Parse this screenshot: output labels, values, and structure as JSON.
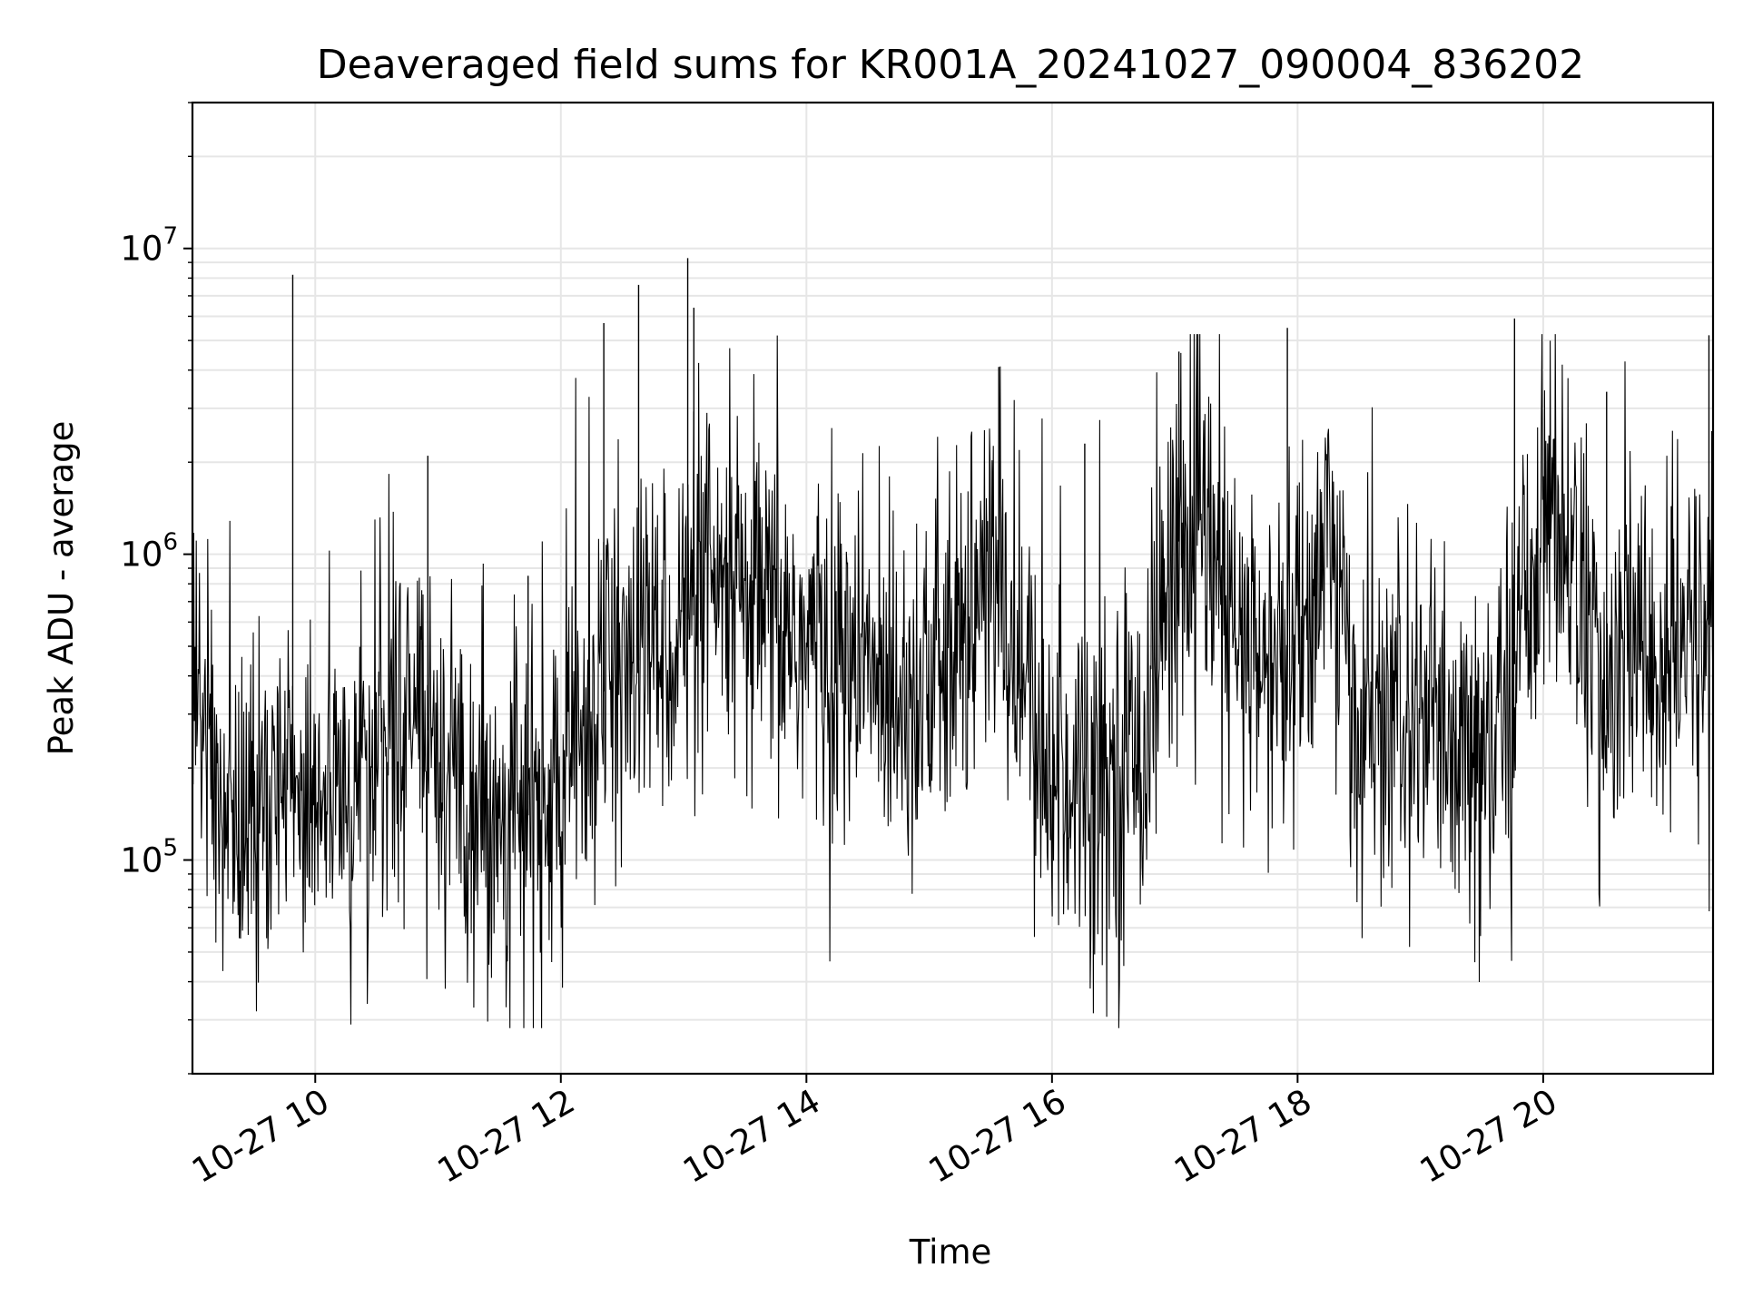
{
  "chart_data": {
    "type": "line",
    "title": "Deaveraged field sums for KR001A_20241027_090004_836202",
    "xlabel": "Time",
    "ylabel": "Peak ADU - average",
    "xlim": [
      "2024-10-27 09:00",
      "2024-10-27 21:23"
    ],
    "ylim": [
      20000,
      30000000
    ],
    "yscale": "log",
    "grid": true,
    "line_color": "#000000",
    "x_ticks": [
      {
        "time": "2024-10-27 10:00",
        "label": "10-27 10"
      },
      {
        "time": "2024-10-27 12:00",
        "label": "10-27 12"
      },
      {
        "time": "2024-10-27 14:00",
        "label": "10-27 14"
      },
      {
        "time": "2024-10-27 16:00",
        "label": "10-27 16"
      },
      {
        "time": "2024-10-27 18:00",
        "label": "10-27 18"
      },
      {
        "time": "2024-10-27 20:00",
        "label": "10-27 20"
      }
    ],
    "y_ticks": [
      {
        "value": 100000,
        "base": "10",
        "exp": "5"
      },
      {
        "value": 1000000,
        "base": "10",
        "exp": "6"
      },
      {
        "value": 10000000,
        "base": "10",
        "exp": "7"
      }
    ],
    "series": [
      {
        "x": [
          "2024-10-27 09:00",
          "2024-10-27 09:15",
          "2024-10-27 09:30",
          "2024-10-27 09:45",
          "2024-10-27 10:00",
          "2024-10-27 10:15",
          "2024-10-27 10:30",
          "2024-10-27 10:45",
          "2024-10-27 11:00",
          "2024-10-27 11:15",
          "2024-10-27 11:30",
          "2024-10-27 11:45",
          "2024-10-27 12:00",
          "2024-10-27 12:15",
          "2024-10-27 12:30",
          "2024-10-27 12:45",
          "2024-10-27 13:00",
          "2024-10-27 13:15",
          "2024-10-27 13:30",
          "2024-10-27 13:45",
          "2024-10-27 14:00",
          "2024-10-27 14:15",
          "2024-10-27 14:30",
          "2024-10-27 14:45",
          "2024-10-27 15:00",
          "2024-10-27 15:15",
          "2024-10-27 15:30",
          "2024-10-27 15:45",
          "2024-10-27 16:00",
          "2024-10-27 16:15",
          "2024-10-27 16:30",
          "2024-10-27 16:45",
          "2024-10-27 17:00",
          "2024-10-27 17:15",
          "2024-10-27 17:30",
          "2024-10-27 17:45",
          "2024-10-27 18:00",
          "2024-10-27 18:15",
          "2024-10-27 18:30",
          "2024-10-27 18:45",
          "2024-10-27 19:00",
          "2024-10-27 19:15",
          "2024-10-27 19:30",
          "2024-10-27 19:45",
          "2024-10-27 20:00",
          "2024-10-27 20:15",
          "2024-10-27 20:30",
          "2024-10-27 20:45",
          "2024-10-27 21:00",
          "2024-10-27 21:15",
          "2024-10-27 21:23"
        ],
        "y": [
          400000,
          150000,
          140000,
          160000,
          180000,
          150000,
          240000,
          300000,
          250000,
          170000,
          140000,
          140000,
          160000,
          330000,
          400000,
          500000,
          600000,
          700000,
          650000,
          600000,
          500000,
          450000,
          400000,
          400000,
          380000,
          450000,
          900000,
          400000,
          170000,
          200000,
          190000,
          250000,
          1100000,
          1100000,
          500000,
          400000,
          500000,
          1200000,
          250000,
          260000,
          300000,
          200000,
          180000,
          400000,
          1500000,
          1000000,
          300000,
          500000,
          400000,
          550000,
          600000
        ],
        "spikes": [
          {
            "time": "2024-10-27 09:49",
            "value": 8200000
          },
          {
            "time": "2024-10-27 10:55",
            "value": 2100000
          },
          {
            "time": "2024-10-27 11:44",
            "value": 850000
          },
          {
            "time": "2024-10-27 12:21",
            "value": 5700000
          },
          {
            "time": "2024-10-27 12:38",
            "value": 7600000
          },
          {
            "time": "2024-10-27 13:02",
            "value": 9300000
          },
          {
            "time": "2024-10-27 13:05",
            "value": 6400000
          },
          {
            "time": "2024-10-27 15:34",
            "value": 4100000
          },
          {
            "time": "2024-10-27 16:16",
            "value": 2300000
          },
          {
            "time": "2024-10-27 17:02",
            "value": 4600000
          },
          {
            "time": "2024-10-27 17:55",
            "value": 5500000
          },
          {
            "time": "2024-10-27 19:46",
            "value": 5900000
          },
          {
            "time": "2024-10-27 20:31",
            "value": 3400000
          },
          {
            "time": "2024-10-27 21:21",
            "value": 5200000
          }
        ]
      }
    ]
  }
}
